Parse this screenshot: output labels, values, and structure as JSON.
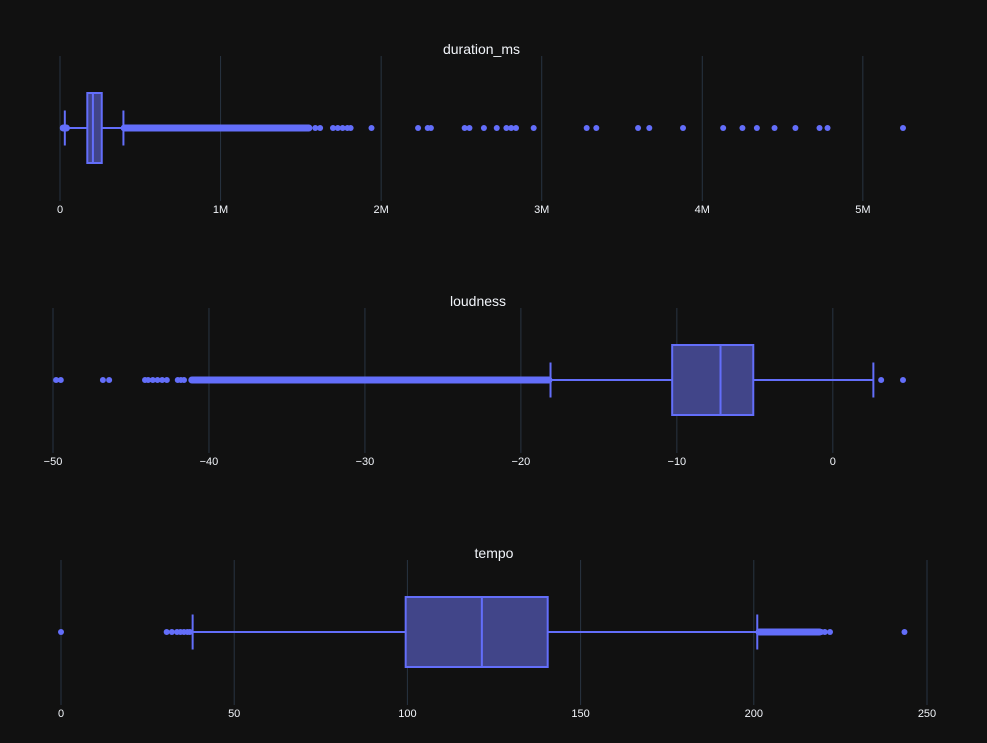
{
  "colors": {
    "background": "#111111",
    "grid": "#283442",
    "box_fill": "#414589",
    "box_line": "#636efa",
    "text": "#f2f5fa"
  },
  "chart_data": [
    {
      "type": "box",
      "orientation": "horizontal",
      "title": "duration_ms",
      "xlim": [
        0,
        5250000
      ],
      "ticks": [
        0,
        1000000,
        2000000,
        3000000,
        4000000,
        5000000
      ],
      "tick_labels": [
        "0",
        "1M",
        "2M",
        "3M",
        "4M",
        "5M"
      ],
      "grid": true,
      "stats": {
        "lower_fence": 30000,
        "q1": 170000,
        "median": 205000,
        "q3": 260000,
        "upper_fence": 395000
      },
      "outlier_clusters": [
        [
          20000,
          40000
        ],
        [
          400000,
          1550000
        ]
      ],
      "outliers": [
        1590000,
        1620000,
        1700000,
        1730000,
        1760000,
        1790000,
        1810000,
        1940000,
        2230000,
        2290000,
        2310000,
        2520000,
        2550000,
        2640000,
        2720000,
        2780000,
        2810000,
        2840000,
        2950000,
        3280000,
        3340000,
        3600000,
        3670000,
        3880000,
        4130000,
        4250000,
        4340000,
        4450000,
        4580000,
        4730000,
        4780000,
        5250000
      ]
    },
    {
      "type": "box",
      "orientation": "horizontal",
      "title": "loudness",
      "xlim": [
        -50,
        4.5
      ],
      "ticks": [
        -50,
        -40,
        -30,
        -20,
        -10,
        0
      ],
      "tick_labels": [
        "−50",
        "−40",
        "−30",
        "−20",
        "−10",
        "0"
      ],
      "grid": true,
      "stats": {
        "lower_fence": -18.1,
        "q1": -10.3,
        "median": -7.2,
        "q3": -5.1,
        "upper_fence": 2.6
      },
      "outlier_clusters": [
        [
          -41.1,
          -18.2
        ]
      ],
      "outliers": [
        -49.8,
        -49.5,
        -46.8,
        -46.4,
        -44.1,
        -43.9,
        -43.6,
        -43.3,
        -43.0,
        -42.7,
        -42.0,
        -41.8,
        -41.6,
        3.1,
        4.5
      ]
    },
    {
      "type": "box",
      "orientation": "horizontal",
      "title": "tempo",
      "xlim": [
        0,
        250
      ],
      "ticks": [
        0,
        50,
        100,
        150,
        200,
        250
      ],
      "tick_labels": [
        "0",
        "50",
        "100",
        "150",
        "200",
        "250"
      ],
      "grid": true,
      "stats": {
        "lower_fence": 38,
        "q1": 99.5,
        "median": 121.5,
        "q3": 140.5,
        "upper_fence": 201
      },
      "outlier_clusters": [
        [
          201.5,
          219
        ]
      ],
      "outliers": [
        0,
        30.5,
        32,
        33.5,
        34.5,
        35.5,
        36.5,
        37.2,
        219.5,
        220.5,
        222,
        243.5
      ]
    }
  ]
}
